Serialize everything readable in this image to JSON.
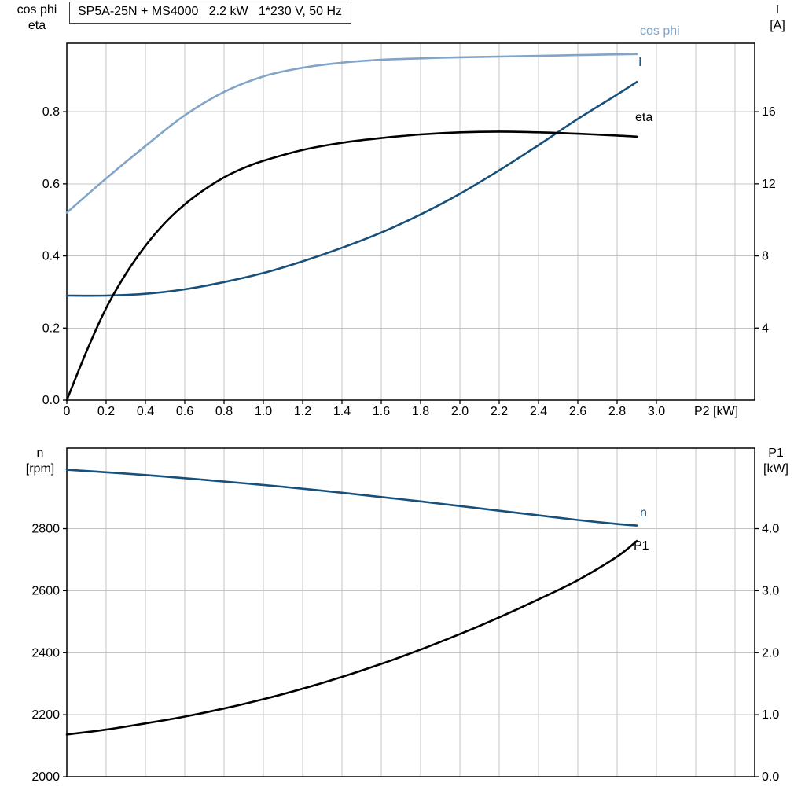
{
  "page": {
    "background": "#ffffff"
  },
  "header": {
    "title_box": "SP5A-25N + MS4000   2.2 kW   1*230 V, 50 Hz"
  },
  "colors": {
    "cos_phi_series": "#82a5c7",
    "current_series": "#17507b",
    "eta_series": "#000000",
    "speed_series": "#17507b",
    "p1_series": "#000000",
    "grid": "#c4c4c4",
    "frame": "#000000",
    "text": "#000000"
  },
  "chart_data": [
    {
      "type": "line",
      "title": "SP5A-25N + MS4000   2.2 kW   1*230 V, 50 Hz",
      "x_axis": {
        "label": "P2 [kW]",
        "range": [
          0,
          3.5
        ],
        "grid_step": 0.2,
        "tick_values": [
          0,
          0.2,
          0.4,
          0.6,
          0.8,
          1.0,
          1.2,
          1.4,
          1.6,
          1.8,
          2.0,
          2.2,
          2.4,
          2.6,
          2.8,
          3.0
        ],
        "tick_labels": [
          "0",
          "0.2",
          "0.4",
          "0.6",
          "0.8",
          "1.0",
          "1.2",
          "1.4",
          "1.6",
          "1.8",
          "2.0",
          "2.2",
          "2.4",
          "2.6",
          "2.8",
          "3.0"
        ]
      },
      "left_axis": {
        "title_lines": [
          "cos phi",
          "eta"
        ],
        "range": [
          0,
          0.99
        ],
        "tick_values": [
          0,
          0.2,
          0.4,
          0.6,
          0.8
        ],
        "tick_labels": [
          "0.0",
          "0.2",
          "0.4",
          "0.6",
          "0.8"
        ]
      },
      "right_axis": {
        "title_lines": [
          "I",
          "[A]"
        ],
        "range": [
          0,
          19.8
        ],
        "tick_values": [
          4,
          8,
          12,
          16
        ],
        "tick_labels": [
          "4",
          "8",
          "12",
          "16"
        ]
      },
      "series": [
        {
          "key": "cos-phi",
          "name": "cos phi",
          "axis": "left",
          "color_key": "cos_phi_series",
          "points": [
            [
              0,
              0.52
            ],
            [
              0.2,
              0.615
            ],
            [
              0.4,
              0.705
            ],
            [
              0.6,
              0.79
            ],
            [
              0.8,
              0.855
            ],
            [
              1.0,
              0.898
            ],
            [
              1.2,
              0.922
            ],
            [
              1.4,
              0.936
            ],
            [
              1.6,
              0.944
            ],
            [
              1.8,
              0.948
            ],
            [
              2.0,
              0.951
            ],
            [
              2.2,
              0.953
            ],
            [
              2.4,
              0.955
            ],
            [
              2.6,
              0.957
            ],
            [
              2.8,
              0.959
            ],
            [
              2.9,
              0.96
            ]
          ]
        },
        {
          "key": "current",
          "name": "I",
          "axis": "right",
          "color_key": "current_series",
          "points": [
            [
              0,
              5.8
            ],
            [
              0.2,
              5.8
            ],
            [
              0.4,
              5.9
            ],
            [
              0.6,
              6.15
            ],
            [
              0.8,
              6.55
            ],
            [
              1.0,
              7.05
            ],
            [
              1.2,
              7.7
            ],
            [
              1.4,
              8.45
            ],
            [
              1.6,
              9.3
            ],
            [
              1.8,
              10.3
            ],
            [
              2.0,
              11.45
            ],
            [
              2.2,
              12.75
            ],
            [
              2.4,
              14.15
            ],
            [
              2.6,
              15.6
            ],
            [
              2.8,
              16.95
            ],
            [
              2.9,
              17.65
            ]
          ]
        },
        {
          "key": "eta",
          "name": "eta",
          "axis": "left",
          "color_key": "eta_series",
          "points": [
            [
              0,
              0
            ],
            [
              0.1,
              0.135
            ],
            [
              0.2,
              0.255
            ],
            [
              0.3,
              0.35
            ],
            [
              0.4,
              0.428
            ],
            [
              0.5,
              0.492
            ],
            [
              0.6,
              0.543
            ],
            [
              0.7,
              0.584
            ],
            [
              0.8,
              0.618
            ],
            [
              0.9,
              0.644
            ],
            [
              1.0,
              0.664
            ],
            [
              1.2,
              0.694
            ],
            [
              1.4,
              0.714
            ],
            [
              1.6,
              0.727
            ],
            [
              1.8,
              0.737
            ],
            [
              2.0,
              0.743
            ],
            [
              2.2,
              0.745
            ],
            [
              2.4,
              0.743
            ],
            [
              2.6,
              0.739
            ],
            [
              2.8,
              0.734
            ],
            [
              2.9,
              0.731
            ]
          ]
        }
      ]
    },
    {
      "type": "line",
      "title": "",
      "x_axis": {
        "label": "",
        "range": [
          0,
          3.5
        ],
        "grid_step": 0.2,
        "tick_values": [],
        "tick_labels": []
      },
      "left_axis": {
        "title_lines": [
          "n",
          "[rpm]"
        ],
        "range": [
          2000,
          3060
        ],
        "tick_values": [
          2000,
          2200,
          2400,
          2600,
          2800
        ],
        "tick_labels": [
          "2000",
          "2200",
          "2400",
          "2600",
          "2800"
        ]
      },
      "right_axis": {
        "title_lines": [
          "P1",
          "[kW]"
        ],
        "range": [
          0,
          5.3
        ],
        "tick_values": [
          0,
          1,
          2,
          3,
          4
        ],
        "tick_labels": [
          "0.0",
          "1.0",
          "2.0",
          "3.0",
          "4.0"
        ]
      },
      "series": [
        {
          "key": "speed",
          "name": "n",
          "axis": "left",
          "color_key": "speed_series",
          "points": [
            [
              0,
              2990
            ],
            [
              0.2,
              2982
            ],
            [
              0.4,
              2973
            ],
            [
              0.6,
              2963
            ],
            [
              0.8,
              2952
            ],
            [
              1.0,
              2941
            ],
            [
              1.2,
              2929
            ],
            [
              1.4,
              2916
            ],
            [
              1.6,
              2902
            ],
            [
              1.8,
              2888
            ],
            [
              2.0,
              2873
            ],
            [
              2.2,
              2858
            ],
            [
              2.4,
              2843
            ],
            [
              2.6,
              2828
            ],
            [
              2.8,
              2815
            ],
            [
              2.9,
              2810
            ]
          ]
        },
        {
          "key": "p1",
          "name": "P1",
          "axis": "right",
          "color_key": "p1_series",
          "points": [
            [
              0,
              0.68
            ],
            [
              0.2,
              0.76
            ],
            [
              0.4,
              0.86
            ],
            [
              0.6,
              0.97
            ],
            [
              0.8,
              1.1
            ],
            [
              1.0,
              1.25
            ],
            [
              1.2,
              1.42
            ],
            [
              1.4,
              1.61
            ],
            [
              1.6,
              1.82
            ],
            [
              1.8,
              2.05
            ],
            [
              2.0,
              2.3
            ],
            [
              2.2,
              2.57
            ],
            [
              2.4,
              2.86
            ],
            [
              2.6,
              3.17
            ],
            [
              2.8,
              3.55
            ],
            [
              2.9,
              3.8
            ]
          ]
        }
      ]
    }
  ]
}
